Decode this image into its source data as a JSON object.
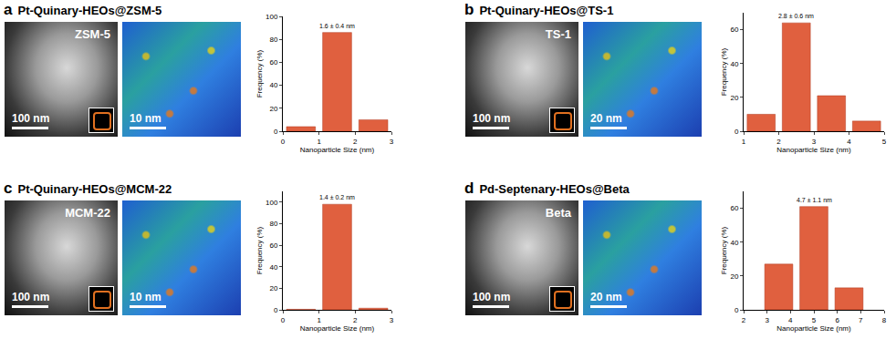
{
  "chart_data": [
    {
      "type": "bar",
      "panel": "a",
      "title": "Pt-Quinary-HEOs@ZSM-5",
      "images": [
        {
          "label": "ZSM-5",
          "scale_bar": "100 nm"
        },
        {
          "scale_bar": "10 nm"
        }
      ],
      "x_label": "Nanoparticle Size (nm)",
      "y_label": "Frequency (%)",
      "annotation": "1.6 ± 0.4 nm",
      "x": [
        0.5,
        1.5,
        2.5
      ],
      "values": [
        4,
        86,
        10
      ],
      "color": "#e0603f",
      "xlim": [
        0,
        3
      ],
      "xticks": [
        0,
        1,
        2,
        3
      ],
      "ylim": [
        0,
        100
      ],
      "yticks": [
        0,
        20,
        40,
        60,
        80,
        100
      ],
      "grid": false
    },
    {
      "type": "bar",
      "panel": "b",
      "title": "Pt-Quinary-HEOs@TS-1",
      "images": [
        {
          "label": "TS-1",
          "scale_bar": "100 nm"
        },
        {
          "scale_bar": "20 nm"
        }
      ],
      "x_label": "Nanoparticle Size (nm)",
      "y_label": "Frequency (%)",
      "annotation": "2.8 ± 0.6 nm",
      "x": [
        1.5,
        2.5,
        3.5,
        4.5
      ],
      "values": [
        10,
        64,
        21,
        6
      ],
      "color": "#e0603f",
      "xlim": [
        1,
        5
      ],
      "xticks": [
        1,
        2,
        3,
        4,
        5
      ],
      "ylim": [
        0,
        70
      ],
      "yticks": [
        0,
        20,
        40,
        60
      ],
      "grid": false
    },
    {
      "type": "bar",
      "panel": "c",
      "title": "Pt-Quinary-HEOs@MCM-22",
      "images": [
        {
          "label": "MCM-22",
          "scale_bar": "100 nm"
        },
        {
          "scale_bar": "10 nm"
        }
      ],
      "x_label": "Nanoparticle Size (nm)",
      "y_label": "Frequency (%)",
      "annotation": "1.4 ± 0.2 nm",
      "x": [
        0.5,
        1.5,
        2.5
      ],
      "values": [
        0.5,
        98,
        1.5
      ],
      "color": "#e0603f",
      "xlim": [
        0,
        3
      ],
      "xticks": [
        0,
        1,
        2,
        3
      ],
      "ylim": [
        0,
        110
      ],
      "yticks": [
        0,
        20,
        40,
        60,
        80,
        100
      ],
      "grid": false
    },
    {
      "type": "bar",
      "panel": "d",
      "title": "Pd-Septenary-HEOs@Beta",
      "images": [
        {
          "label": "Beta",
          "scale_bar": "100 nm"
        },
        {
          "scale_bar": "20 nm"
        }
      ],
      "x_label": "Nanoparticle Size (nm)",
      "y_label": "Frequency (%)",
      "annotation": "4.7 ± 1.1 nm",
      "x": [
        3.5,
        5,
        6.5
      ],
      "values": [
        27,
        61,
        13
      ],
      "color": "#e0603f",
      "xlim": [
        2,
        8
      ],
      "xticks": [
        2,
        3,
        4,
        5,
        6,
        7,
        8
      ],
      "ylim": [
        0,
        70
      ],
      "yticks": [
        0,
        20,
        40,
        60
      ],
      "grid": false
    }
  ]
}
